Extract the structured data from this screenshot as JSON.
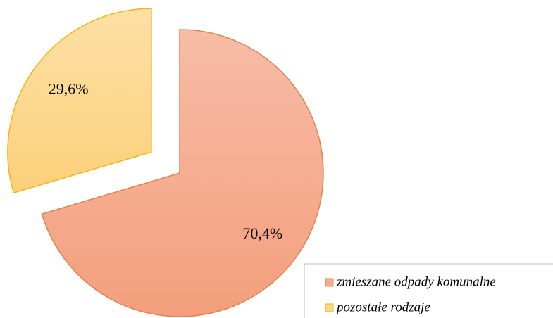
{
  "chart_data": {
    "type": "pie",
    "categories": [
      "zmieszane odpady komunalne",
      "pozostałe rodzaje"
    ],
    "values": [
      70.4,
      29.6
    ],
    "value_labels": [
      "70,4%",
      "29,6%"
    ],
    "colors": [
      "#f5ab8c",
      "#fdd68a"
    ],
    "legend": "bottom-right"
  }
}
